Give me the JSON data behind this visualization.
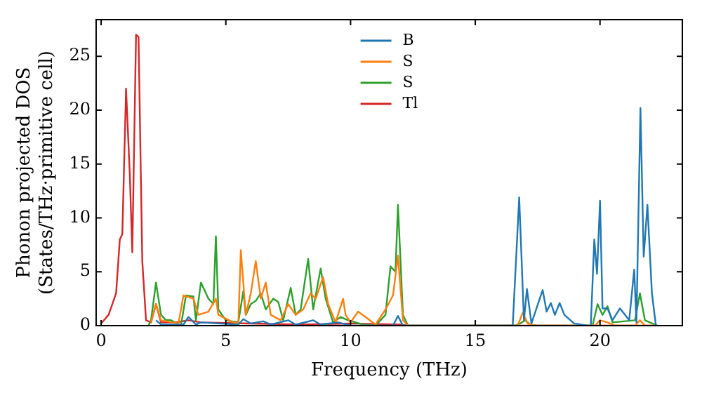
{
  "chart_data": {
    "type": "line",
    "xlabel": "Frequency (THz)",
    "ylabel": "Phonon projected DOS\n(States/THz·primitive cell)",
    "xlim": [
      -0.2,
      23.3
    ],
    "xticks": [
      0,
      5,
      10,
      15,
      20
    ],
    "ylim": [
      0,
      28.4
    ],
    "yticks": [
      0,
      5,
      10,
      15,
      20,
      25
    ],
    "grid": false,
    "legend": "top",
    "marker": "none",
    "line_style": "solid",
    "series": [
      {
        "name": "B",
        "color": "#1f77b4",
        "x": [
          2.2,
          2.4,
          3.3,
          3.5,
          3.8,
          4.0,
          5.5,
          5.7,
          6.0,
          6.5,
          6.8,
          7.5,
          7.8,
          8.5,
          8.8,
          9.5,
          10,
          11.7,
          11.9,
          12.1,
          16.5,
          16.76,
          16.95,
          17.07,
          17.25,
          17.7,
          17.86,
          18.03,
          18.19,
          18.38,
          18.57,
          18.96,
          19.5,
          19.63,
          19.77,
          19.88,
          20.0,
          20.1,
          20.3,
          20.5,
          20.8,
          21.17,
          21.37,
          21.46,
          21.62,
          21.75,
          21.9,
          22.08,
          22.24
        ],
        "values": [
          0.5,
          0.1,
          0.1,
          0.8,
          0.1,
          0.3,
          0.1,
          0.6,
          0.2,
          0.4,
          0.1,
          0.5,
          0.1,
          0.5,
          0.1,
          0.3,
          0,
          0,
          0.9,
          0,
          0,
          11.9,
          0.5,
          3.4,
          0.2,
          3.3,
          1.3,
          2.1,
          1.0,
          2.1,
          1.0,
          0.2,
          0,
          0,
          8,
          4.8,
          11.6,
          1.6,
          1.6,
          0.5,
          1.6,
          0.5,
          5.2,
          0.3,
          20.2,
          6.4,
          11.2,
          3.0,
          0
        ]
      },
      {
        "name": "S",
        "color": "#ff7f0e",
        "x": [
          2.0,
          2.2,
          2.4,
          3.1,
          3.3,
          3.7,
          3.9,
          4.3,
          4.6,
          4.7,
          5.3,
          5.5,
          5.6,
          5.8,
          6.0,
          6.2,
          6.4,
          6.6,
          6.8,
          7.2,
          7.5,
          7.8,
          8.1,
          8.4,
          8.6,
          8.9,
          9.1,
          9.4,
          9.7,
          9.8,
          10.0,
          10.3,
          10.6,
          11.0,
          11.4,
          11.7,
          11.9,
          12.1,
          12.3,
          16.7,
          16.9,
          17.1,
          17.4,
          19.8,
          20.0,
          20.3,
          20.6,
          21.4,
          21.6,
          21.8,
          22.3
        ],
        "values": [
          0.3,
          2,
          0.5,
          0.2,
          2.8,
          2.5,
          1,
          1.3,
          2.5,
          1,
          0.3,
          0.2,
          7,
          1,
          3,
          6,
          2.5,
          4,
          1,
          0.5,
          2,
          1,
          1.5,
          3,
          2.5,
          4.5,
          2,
          0.3,
          2.5,
          1,
          0.3,
          1.3,
          0.8,
          0.1,
          1.5,
          2.8,
          6.5,
          0.5,
          0,
          0,
          1.2,
          0.2,
          0,
          0,
          0.5,
          0.3,
          0,
          0,
          0.5,
          0,
          0
        ]
      },
      {
        "name": "S",
        "color": "#2ca02c",
        "x": [
          1.9,
          2.0,
          2.2,
          2.4,
          2.6,
          2.8,
          3.2,
          3.4,
          3.7,
          3.8,
          4.0,
          4.3,
          4.5,
          4.6,
          4.7,
          5.0,
          5.5,
          5.7,
          5.8,
          6.0,
          6.2,
          6.4,
          6.6,
          6.9,
          7.1,
          7.3,
          7.6,
          7.8,
          8.0,
          8.3,
          8.5,
          8.8,
          9.0,
          9.3,
          9.6,
          9.9,
          10.2,
          10.5,
          11.0,
          11.4,
          11.6,
          11.8,
          11.9,
          12.1,
          12.3,
          16.6,
          16.8,
          17.0,
          17.2,
          17.5,
          19.7,
          19.9,
          20.1,
          20.3,
          20.5,
          21.4,
          21.6,
          21.8,
          22.3
        ],
        "values": [
          0,
          0.5,
          4,
          1,
          0.5,
          0.5,
          0,
          2.8,
          2.7,
          0.5,
          4,
          2.5,
          2,
          8.3,
          1.5,
          0.5,
          0.3,
          3.2,
          1,
          2,
          2.3,
          3,
          1.5,
          2.5,
          2.2,
          0.5,
          3.5,
          1,
          1.5,
          6.2,
          1.5,
          5.3,
          2.5,
          0.3,
          0.8,
          0.5,
          0.3,
          0.1,
          0,
          1,
          5.5,
          5,
          11.2,
          1,
          0,
          0,
          0.2,
          0.5,
          0.1,
          0,
          0,
          2,
          1,
          1.8,
          0.3,
          0.5,
          3,
          0.5,
          0
        ]
      },
      {
        "name": "Tl",
        "color": "#d62728",
        "x": [
          0.0,
          0.3,
          0.6,
          0.75,
          0.85,
          1.0,
          1.15,
          1.25,
          1.4,
          1.5,
          1.65,
          1.8,
          2.0,
          2.2,
          2.4,
          3.0,
          3.5,
          4.0,
          6.0,
          8.0,
          10.0,
          12.0,
          12.3,
          22.3
        ],
        "values": [
          0.2,
          1,
          3,
          8,
          8.5,
          22,
          14,
          6.8,
          27,
          26.8,
          6,
          0.5,
          0.3,
          2,
          0.3,
          0.3,
          0.5,
          0.3,
          0.2,
          0.1,
          0.2,
          0.1,
          0,
          0
        ]
      }
    ]
  }
}
